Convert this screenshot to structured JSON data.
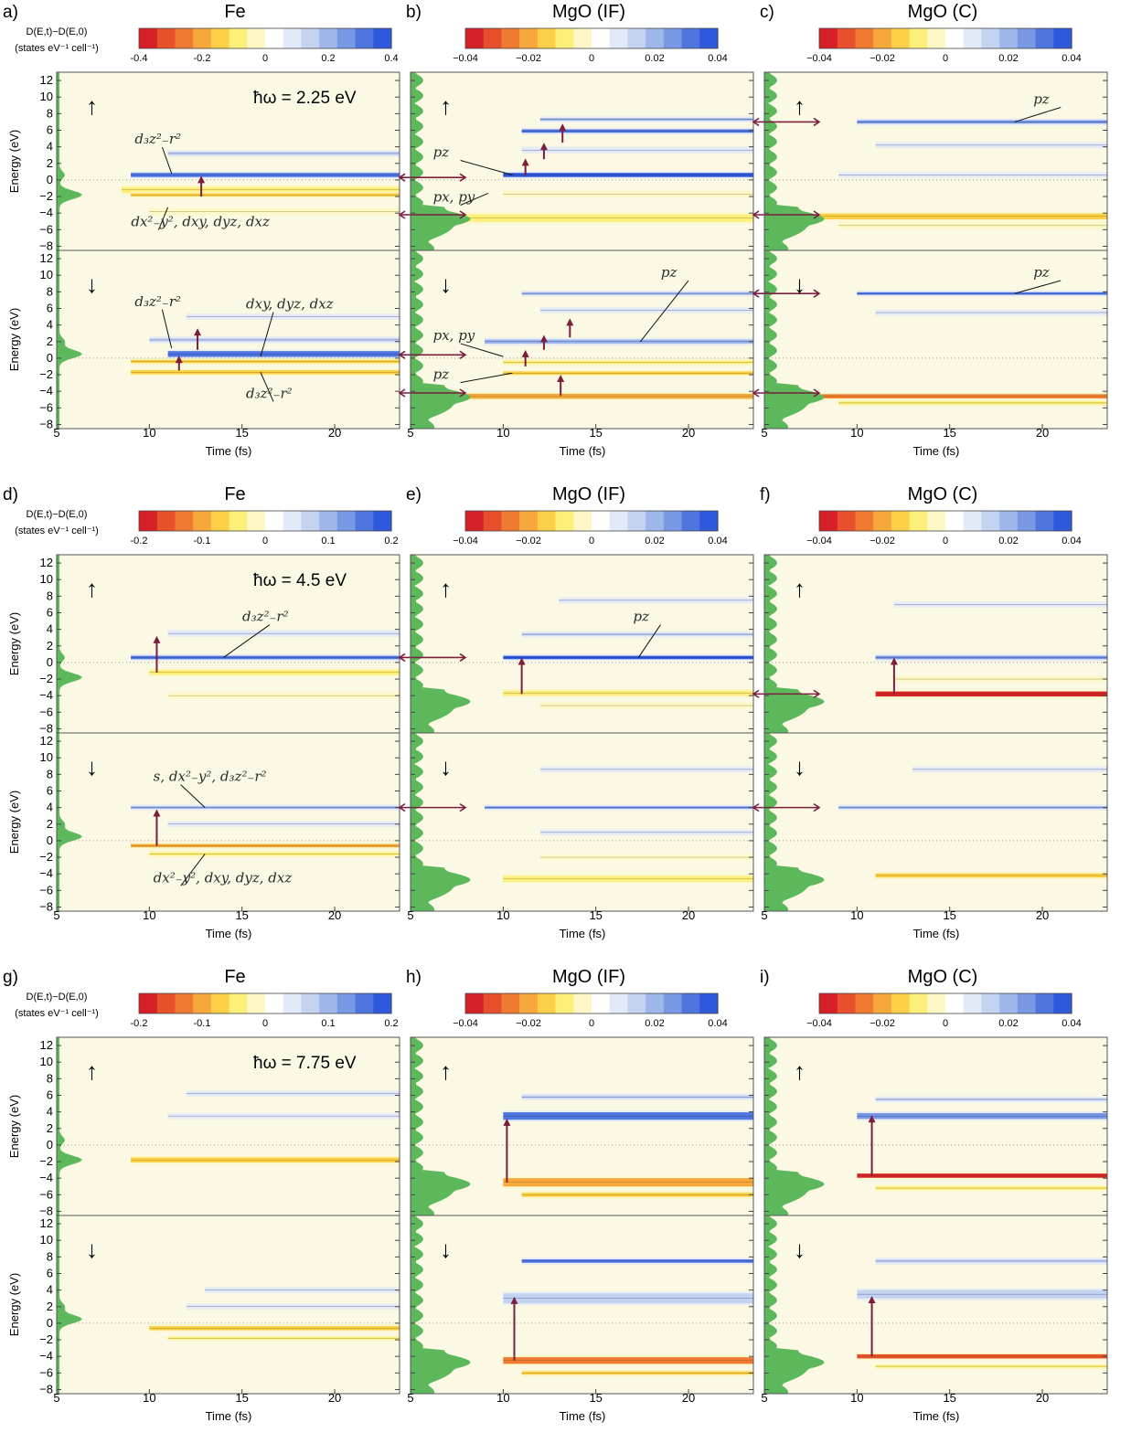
{
  "common": {
    "energy_label": "Energy (eV)",
    "time_label": "Time (fs)",
    "cbar_label_line1": "D(E,t)−D(E,0)",
    "cbar_label_line2": "(states eV⁻¹ cell⁻¹)",
    "energy_ticks": [
      "12",
      "10",
      "8",
      "6",
      "4",
      "2",
      "0",
      "−2",
      "−4",
      "−6",
      "−8"
    ],
    "time_ticks": [
      "5",
      "10",
      "15",
      "20"
    ],
    "spin_up": "↑",
    "spin_down": "↓"
  },
  "colors": {
    "background": "#fbf9e4",
    "dos_fill": "#5db85c",
    "arrow": "#7a1f3d",
    "colormap": [
      "#d62027",
      "#e8502c",
      "#ef7b32",
      "#f6a83c",
      "#fbd046",
      "#fdf07a",
      "#fdf8c6",
      "#ffffff",
      "#e3eaf7",
      "#c4d3f0",
      "#9eb6e9",
      "#7898e3",
      "#4f75de",
      "#2f58dc"
    ]
  },
  "chart_data": [
    {
      "panel": "a",
      "title": "Fe",
      "type": "heatmap",
      "photon_energy": "ħω = 2.25 eV",
      "cbar_ticks": [
        "-0.4",
        "-0.2",
        "0",
        "0.2",
        "0.4"
      ],
      "xlim": [
        5,
        23.5
      ],
      "ylim": [
        -8.5,
        13
      ],
      "labels_up": [
        {
          "text": "d₃z²₋r²"
        },
        {
          "text": "dx²₋y², dxy, dyz, dxz"
        }
      ],
      "labels_down": [
        {
          "text": "d₃z²₋r²"
        },
        {
          "text": "dxy, dyz, dxz"
        },
        {
          "text": "d₃z²₋r²"
        }
      ]
    },
    {
      "panel": "b",
      "title": "MgO (IF)",
      "type": "heatmap",
      "cbar_ticks": [
        "−0.04",
        "−0.02",
        "0",
        "0.02",
        "0.04"
      ],
      "xlim": [
        5,
        23.5
      ],
      "ylim": [
        -8.5,
        13
      ],
      "labels_up": [
        {
          "text": "pz"
        },
        {
          "text": "px, py"
        }
      ],
      "labels_down": [
        {
          "text": "pz"
        },
        {
          "text": "px, py"
        },
        {
          "text": "pz"
        }
      ]
    },
    {
      "panel": "c",
      "title": "MgO (C)",
      "type": "heatmap",
      "cbar_ticks": [
        "−0.04",
        "−0.02",
        "0",
        "0.02",
        "0.04"
      ],
      "xlim": [
        5,
        23.5
      ],
      "ylim": [
        -8.5,
        13
      ],
      "labels_up": [
        {
          "text": "pz"
        }
      ],
      "labels_down": [
        {
          "text": "pz"
        }
      ]
    },
    {
      "panel": "d",
      "title": "Fe",
      "type": "heatmap",
      "photon_energy": "ħω = 4.5 eV",
      "cbar_ticks": [
        "-0.2",
        "-0.1",
        "0",
        "0.1",
        "0.2"
      ],
      "xlim": [
        5,
        23.5
      ],
      "ylim": [
        -8.5,
        13
      ],
      "labels_up": [
        {
          "text": "d₃z²₋r²"
        }
      ],
      "labels_down": [
        {
          "text": "s, dx²₋y², d₃z²₋r²"
        },
        {
          "text": "dx²₋y², dxy, dyz, dxz"
        }
      ]
    },
    {
      "panel": "e",
      "title": "MgO (IF)",
      "type": "heatmap",
      "cbar_ticks": [
        "−0.04",
        "−0.02",
        "0",
        "0.02",
        "0.04"
      ],
      "xlim": [
        5,
        23.5
      ],
      "ylim": [
        -8.5,
        13
      ],
      "labels_up": [
        {
          "text": "pz"
        }
      ],
      "labels_down": []
    },
    {
      "panel": "f",
      "title": "MgO (C)",
      "type": "heatmap",
      "cbar_ticks": [
        "−0.04",
        "−0.02",
        "0",
        "0.02",
        "0.04"
      ],
      "xlim": [
        5,
        23.5
      ],
      "ylim": [
        -8.5,
        13
      ],
      "labels_up": [],
      "labels_down": []
    },
    {
      "panel": "g",
      "title": "Fe",
      "type": "heatmap",
      "photon_energy": "ħω = 7.75 eV",
      "cbar_ticks": [
        "-0.2",
        "-0.1",
        "0",
        "0.1",
        "0.2"
      ],
      "xlim": [
        5,
        23.5
      ],
      "ylim": [
        -8.5,
        13
      ],
      "labels_up": [],
      "labels_down": []
    },
    {
      "panel": "h",
      "title": "MgO (IF)",
      "type": "heatmap",
      "cbar_ticks": [
        "−0.04",
        "−0.02",
        "0",
        "0.02",
        "0.04"
      ],
      "xlim": [
        5,
        23.5
      ],
      "ylim": [
        -8.5,
        13
      ],
      "labels_up": [],
      "labels_down": []
    },
    {
      "panel": "i",
      "title": "MgO (C)",
      "type": "heatmap",
      "cbar_ticks": [
        "−0.04",
        "−0.02",
        "0",
        "0.02",
        "0.04"
      ],
      "xlim": [
        5,
        23.5
      ],
      "ylim": [
        -8.5,
        13
      ],
      "labels_up": [],
      "labels_down": []
    }
  ]
}
